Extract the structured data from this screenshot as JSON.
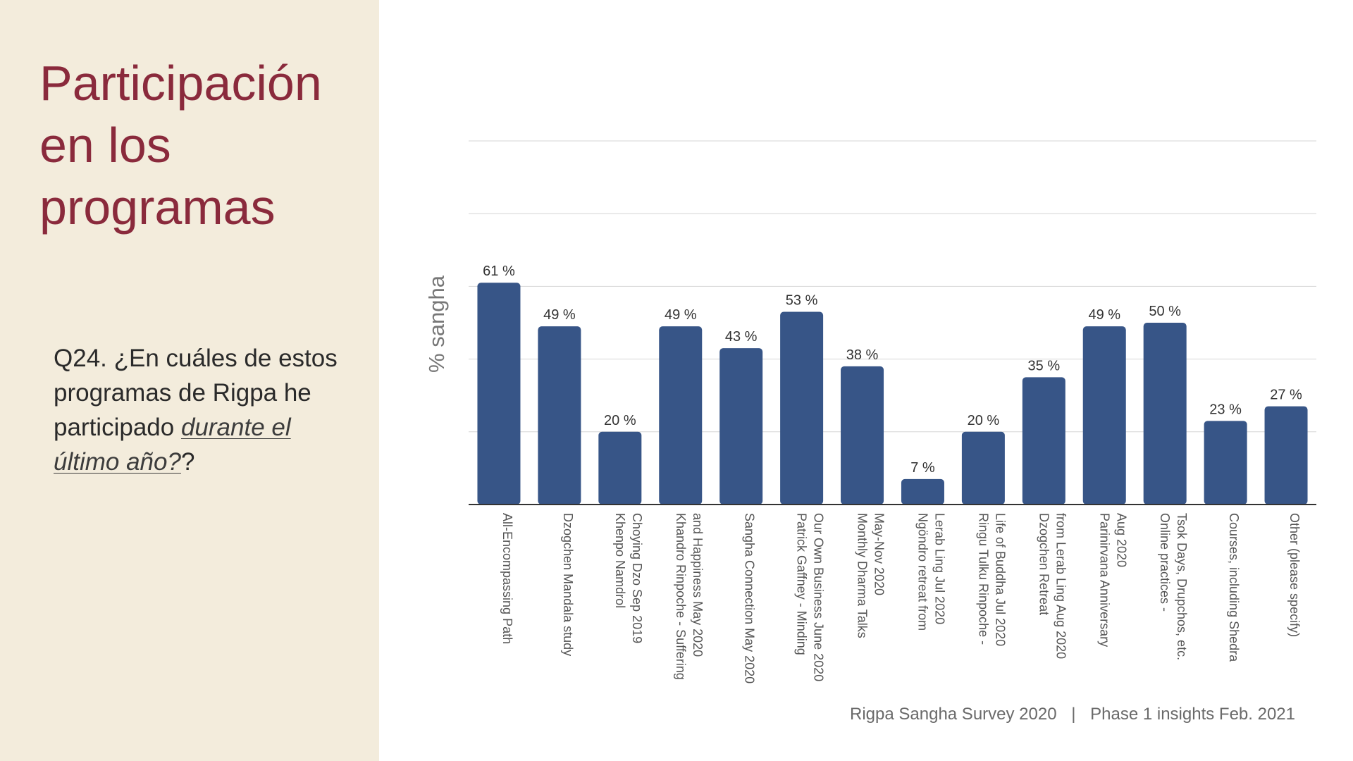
{
  "slide": {
    "title_lines": [
      "Participación",
      "en los",
      "programas"
    ],
    "question_prefix": "Q24. ¿En cuáles de estos programas de Rigpa he participado ",
    "question_emphasis": "durante el último año?",
    "question_suffix": "?",
    "footer_survey": "Rigpa Sangha Survey 2020",
    "footer_separator": "|",
    "footer_phase": "Phase 1 insights Feb. 2021"
  },
  "colors": {
    "bar": "#375587",
    "title": "#8a2a3c",
    "panel": "#f3ecdc"
  },
  "chart_data": {
    "type": "bar",
    "ylabel": "% sangha",
    "ylim": [
      0,
      100
    ],
    "grid": true,
    "value_suffix": " %",
    "categories": [
      [
        "All-Encompassing Path"
      ],
      [
        "Dzogchen Mandala study"
      ],
      [
        "Khenpo Namdrol",
        "Choying Dzo Sep 2019"
      ],
      [
        "Khandro Rinpoche - Suffering",
        "and Happiness May 2020"
      ],
      [
        "Sangha Connection May 2020"
      ],
      [
        "Patrick Gaffney - Minding",
        "Our Own Business June 2020"
      ],
      [
        "Monthly Dharma Talks",
        "May-Nov 2020"
      ],
      [
        "Ngöndro retreat from",
        "Lerab Ling Jul 2020"
      ],
      [
        "Ringu Tulku Rinpoche -",
        "Life of Buddha Jul 2020"
      ],
      [
        "Dzogchen Retreat",
        "from Lerab Ling Aug 2020"
      ],
      [
        "Parinirvana Anniversary",
        "Aug 2020"
      ],
      [
        "Online practices -",
        "Tsok Days, Drupchos, etc."
      ],
      [
        "Courses, including Shedra"
      ],
      [
        "Other (please specify)"
      ]
    ],
    "values": [
      61,
      49,
      20,
      49,
      43,
      53,
      38,
      7,
      20,
      35,
      49,
      50,
      23,
      27
    ]
  }
}
